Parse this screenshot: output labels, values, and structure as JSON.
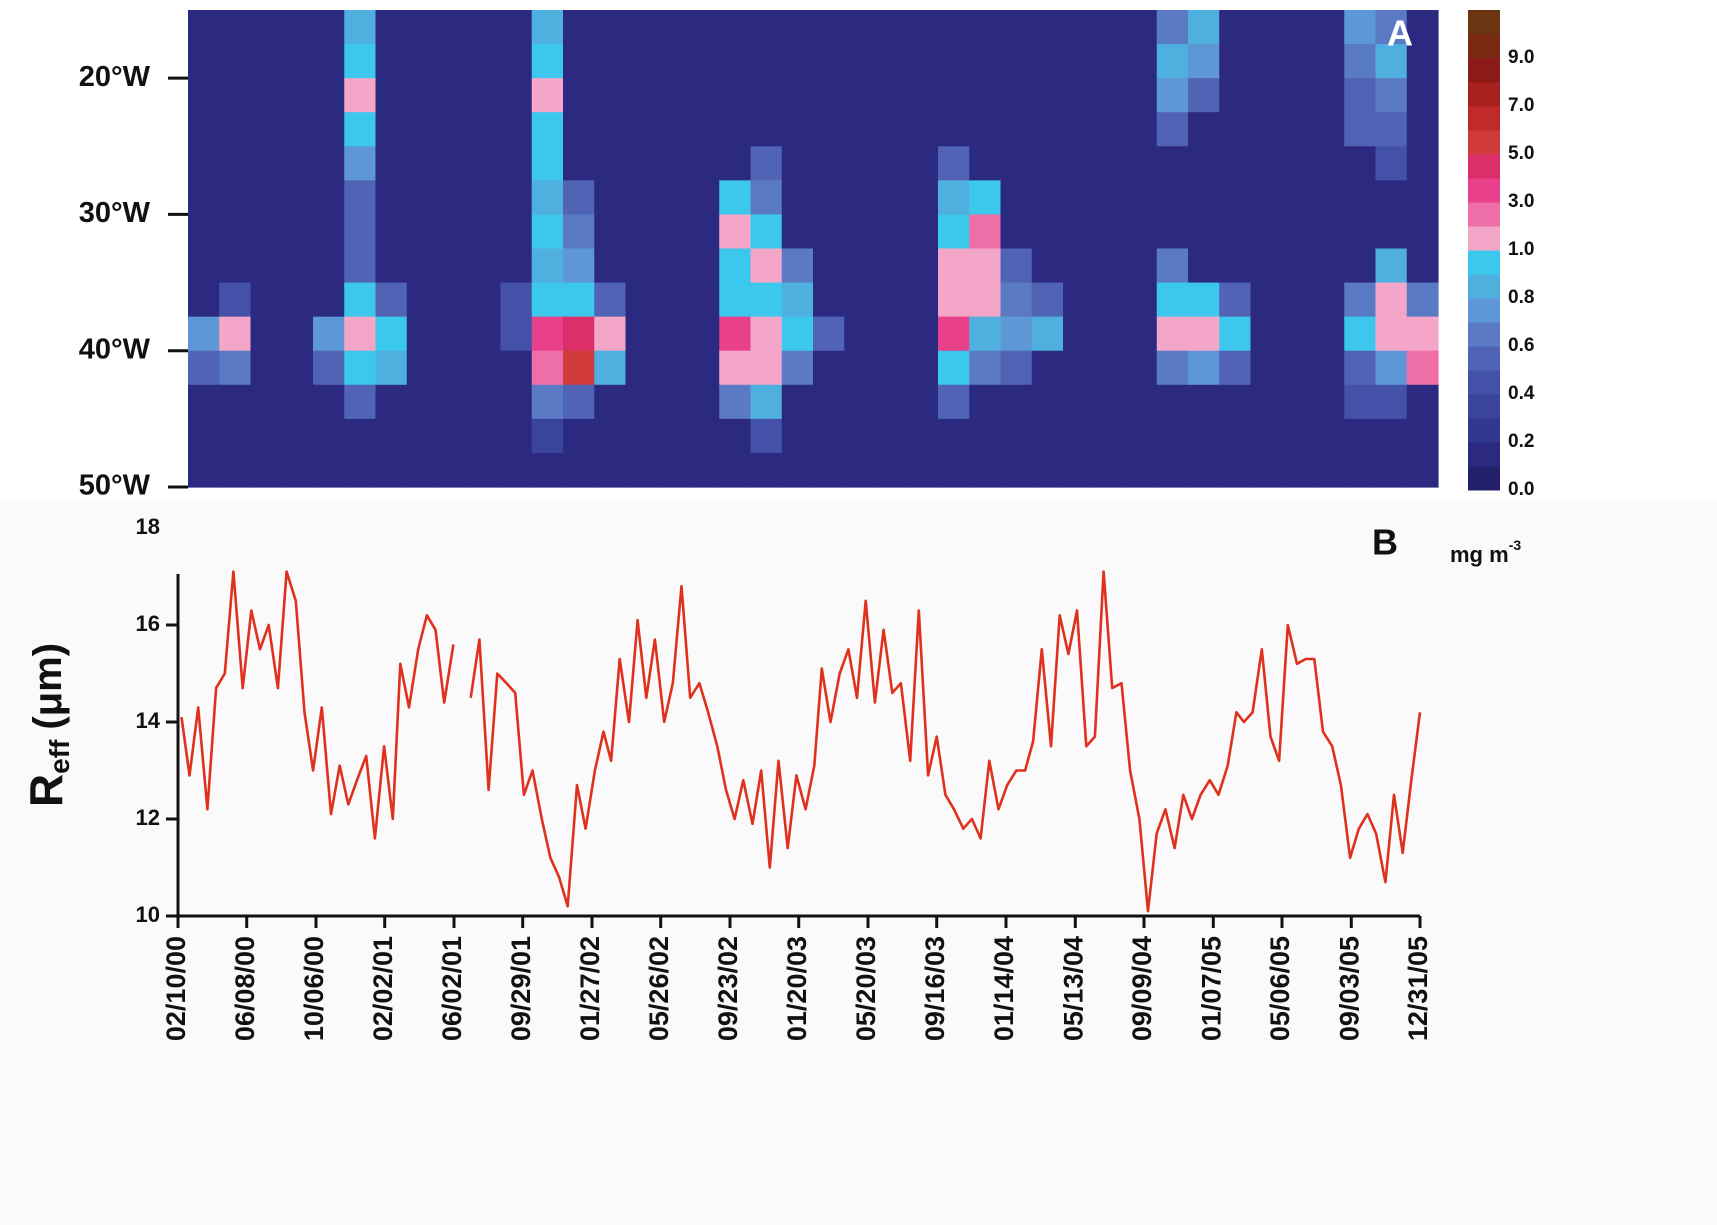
{
  "chart_data": [
    {
      "type": "heatmap",
      "label": "A",
      "ylim": [
        50,
        15
      ],
      "yticks": [
        {
          "value": 20,
          "label": "20°W"
        },
        {
          "value": 30,
          "label": "30°W"
        },
        {
          "value": 40,
          "label": "40°W"
        },
        {
          "value": 50,
          "label": "50°W"
        }
      ],
      "y": [
        16.25,
        18.75,
        21.25,
        23.75,
        26.25,
        28.75,
        31.25,
        33.75,
        36.25,
        38.75,
        41.25,
        43.75,
        46.25,
        48.75
      ],
      "z": [
        [
          0.1,
          0.1,
          0.1,
          0.1,
          0.1,
          0.8,
          0.1,
          0.1,
          0.1,
          0.1,
          0.1,
          0.8,
          0.1,
          0.1,
          0.1,
          0.1,
          0.1,
          0.1,
          0.1,
          0.1,
          0.1,
          0.1,
          0.1,
          0.1,
          0.1,
          0.1,
          0.1,
          0.1,
          0.1,
          0.1,
          0.1,
          0.6,
          0.8,
          0.1,
          0.1,
          0.1,
          0.1,
          0.7,
          0.6,
          0.1
        ],
        [
          0.1,
          0.1,
          0.1,
          0.1,
          0.1,
          0.9,
          0.1,
          0.1,
          0.1,
          0.1,
          0.1,
          0.9,
          0.1,
          0.1,
          0.1,
          0.1,
          0.1,
          0.1,
          0.1,
          0.1,
          0.1,
          0.1,
          0.1,
          0.1,
          0.1,
          0.1,
          0.1,
          0.1,
          0.1,
          0.1,
          0.1,
          0.8,
          0.7,
          0.1,
          0.1,
          0.1,
          0.1,
          0.6,
          0.8,
          0.1
        ],
        [
          0.1,
          0.1,
          0.1,
          0.1,
          0.1,
          1.2,
          0.1,
          0.1,
          0.1,
          0.1,
          0.1,
          1.5,
          0.1,
          0.1,
          0.1,
          0.1,
          0.1,
          0.1,
          0.1,
          0.1,
          0.1,
          0.1,
          0.1,
          0.1,
          0.1,
          0.1,
          0.1,
          0.1,
          0.1,
          0.1,
          0.1,
          0.7,
          0.5,
          0.1,
          0.1,
          0.1,
          0.1,
          0.5,
          0.6,
          0.1
        ],
        [
          0.1,
          0.1,
          0.1,
          0.1,
          0.1,
          0.9,
          0.1,
          0.1,
          0.1,
          0.1,
          0.1,
          0.9,
          0.1,
          0.1,
          0.1,
          0.1,
          0.1,
          0.1,
          0.1,
          0.1,
          0.1,
          0.1,
          0.1,
          0.1,
          0.1,
          0.1,
          0.1,
          0.1,
          0.1,
          0.1,
          0.1,
          0.5,
          0.1,
          0.1,
          0.1,
          0.1,
          0.1,
          0.5,
          0.5,
          0.1
        ],
        [
          0.1,
          0.1,
          0.1,
          0.1,
          0.1,
          0.7,
          0.1,
          0.1,
          0.1,
          0.1,
          0.1,
          0.9,
          0.1,
          0.1,
          0.1,
          0.1,
          0.1,
          0.1,
          0.5,
          0.1,
          0.1,
          0.1,
          0.1,
          0.1,
          0.5,
          0.1,
          0.1,
          0.1,
          0.1,
          0.1,
          0.1,
          0.1,
          0.1,
          0.1,
          0.1,
          0.1,
          0.1,
          0.1,
          0.4,
          0.1
        ],
        [
          0.1,
          0.1,
          0.1,
          0.1,
          0.1,
          0.5,
          0.1,
          0.1,
          0.1,
          0.1,
          0.1,
          0.8,
          0.5,
          0.1,
          0.1,
          0.1,
          0.1,
          0.9,
          0.6,
          0.1,
          0.1,
          0.1,
          0.1,
          0.1,
          0.8,
          0.9,
          0.1,
          0.1,
          0.1,
          0.1,
          0.1,
          0.1,
          0.1,
          0.1,
          0.1,
          0.1,
          0.1,
          0.1,
          0.1,
          0.1
        ],
        [
          0.1,
          0.1,
          0.1,
          0.1,
          0.1,
          0.5,
          0.1,
          0.1,
          0.1,
          0.1,
          0.1,
          0.9,
          0.6,
          0.1,
          0.1,
          0.1,
          0.1,
          1.2,
          0.9,
          0.1,
          0.1,
          0.1,
          0.1,
          0.1,
          0.9,
          2.5,
          0.1,
          0.1,
          0.1,
          0.1,
          0.1,
          0.1,
          0.1,
          0.1,
          0.1,
          0.1,
          0.1,
          0.1,
          0.1,
          0.1
        ],
        [
          0.1,
          0.1,
          0.1,
          0.1,
          0.1,
          0.5,
          0.1,
          0.1,
          0.1,
          0.1,
          0.1,
          0.8,
          0.7,
          0.1,
          0.1,
          0.1,
          0.1,
          0.9,
          1.2,
          0.6,
          0.1,
          0.1,
          0.1,
          0.1,
          1.5,
          1.8,
          0.5,
          0.1,
          0.1,
          0.1,
          0.1,
          0.6,
          0.1,
          0.1,
          0.1,
          0.1,
          0.1,
          0.1,
          0.8,
          0.1
        ],
        [
          0.1,
          0.4,
          0.1,
          0.1,
          0.1,
          0.9,
          0.5,
          0.1,
          0.1,
          0.1,
          0.4,
          0.9,
          0.9,
          0.5,
          0.1,
          0.1,
          0.1,
          0.9,
          0.9,
          0.8,
          0.1,
          0.1,
          0.1,
          0.1,
          1.5,
          1.2,
          0.6,
          0.5,
          0.1,
          0.1,
          0.1,
          0.9,
          0.9,
          0.5,
          0.1,
          0.1,
          0.1,
          0.6,
          1.2,
          0.6
        ],
        [
          0.7,
          1.5,
          0.1,
          0.1,
          0.7,
          1.5,
          0.9,
          0.1,
          0.1,
          0.1,
          0.4,
          3.5,
          4.5,
          1.2,
          0.1,
          0.1,
          0.1,
          3.0,
          1.5,
          0.9,
          0.5,
          0.1,
          0.1,
          0.1,
          3.0,
          0.8,
          0.7,
          0.8,
          0.1,
          0.1,
          0.1,
          1.5,
          1.8,
          0.9,
          0.1,
          0.1,
          0.1,
          0.9,
          1.5,
          1.1
        ],
        [
          0.5,
          0.6,
          0.1,
          0.1,
          0.5,
          0.9,
          0.8,
          0.1,
          0.1,
          0.1,
          0.1,
          2.5,
          5.5,
          0.8,
          0.1,
          0.1,
          0.1,
          1.0,
          1.2,
          0.6,
          0.1,
          0.1,
          0.1,
          0.1,
          0.9,
          0.6,
          0.5,
          0.1,
          0.1,
          0.1,
          0.1,
          0.6,
          0.7,
          0.5,
          0.1,
          0.1,
          0.1,
          0.5,
          0.7,
          2.5
        ],
        [
          0.1,
          0.1,
          0.1,
          0.1,
          0.1,
          0.5,
          0.1,
          0.1,
          0.1,
          0.1,
          0.1,
          0.6,
          0.5,
          0.1,
          0.1,
          0.1,
          0.1,
          0.6,
          0.8,
          0.1,
          0.1,
          0.1,
          0.1,
          0.1,
          0.5,
          0.1,
          0.1,
          0.1,
          0.1,
          0.1,
          0.1,
          0.1,
          0.1,
          0.1,
          0.1,
          0.1,
          0.1,
          0.4,
          0.4,
          0.1
        ],
        [
          0.1,
          0.1,
          0.1,
          0.1,
          0.1,
          0.1,
          0.1,
          0.1,
          0.1,
          0.1,
          0.1,
          0.3,
          0.1,
          0.1,
          0.1,
          0.1,
          0.1,
          0.1,
          0.4,
          0.1,
          0.1,
          0.1,
          0.1,
          0.1,
          0.1,
          0.1,
          0.1,
          0.1,
          0.1,
          0.1,
          0.1,
          0.1,
          0.1,
          0.1,
          0.1,
          0.1,
          0.1,
          0.1,
          0.1,
          0.1
        ],
        [
          0.1,
          0.1,
          0.1,
          0.1,
          0.1,
          0.1,
          0.1,
          0.1,
          0.1,
          0.1,
          0.1,
          0.1,
          0.1,
          0.1,
          0.1,
          0.1,
          0.1,
          0.1,
          0.1,
          0.1,
          0.1,
          0.1,
          0.1,
          0.1,
          0.1,
          0.1,
          0.1,
          0.1,
          0.1,
          0.1,
          0.1,
          0.1,
          0.1,
          0.1,
          0.1,
          0.1,
          0.1,
          0.1,
          0.1,
          0.1
        ]
      ],
      "colorbar": {
        "levels": [
          0,
          0.1,
          0.2,
          0.3,
          0.4,
          0.5,
          0.6,
          0.7,
          0.8,
          0.9,
          1,
          2,
          3,
          4,
          5,
          6,
          7,
          8,
          9,
          10,
          11
        ],
        "colors": [
          "#23206b",
          "#2b2a80",
          "#33388f",
          "#3a449a",
          "#4352a8",
          "#5063b5",
          "#5b7ac4",
          "#5d97d6",
          "#4fb0e0",
          "#3cc8ec",
          "#f4a6c8",
          "#ee6fa7",
          "#e8408a",
          "#dc2f6a",
          "#d03a3a",
          "#c02a2a",
          "#a8201f",
          "#8c1a16",
          "#7a2a12",
          "#6b3512"
        ],
        "ticks": [
          {
            "value": 0,
            "label": "0.0"
          },
          {
            "value": 0.2,
            "label": "0.2"
          },
          {
            "value": 0.4,
            "label": "0.4"
          },
          {
            "value": 0.6,
            "label": "0.6"
          },
          {
            "value": 0.8,
            "label": "0.8"
          },
          {
            "value": 1,
            "label": "1.0"
          },
          {
            "value": 3,
            "label": "3.0"
          },
          {
            "value": 5,
            "label": "5.0"
          },
          {
            "value": 7,
            "label": "7.0"
          },
          {
            "value": 9,
            "label": "9.0"
          }
        ],
        "label": "mg m",
        "label_sup": "-3"
      }
    },
    {
      "type": "line",
      "label": "B",
      "color": "#e0301e",
      "ylabel": {
        "main": "R",
        "sub": "eff",
        "unit": "(μm)"
      },
      "ylim": [
        10,
        18
      ],
      "yticks": [
        10,
        12,
        14,
        16,
        18
      ],
      "xlim": [
        "2000-02-10",
        "2005-12-31"
      ],
      "xticks": [
        {
          "value": "2000-02-10",
          "label": "02/10/00"
        },
        {
          "value": "2000-06-08",
          "label": "06/08/00"
        },
        {
          "value": "2000-10-06",
          "label": "10/06/00"
        },
        {
          "value": "2001-02-02",
          "label": "02/02/01"
        },
        {
          "value": "2001-06-02",
          "label": "06/02/01"
        },
        {
          "value": "2001-09-29",
          "label": "09/29/01"
        },
        {
          "value": "2002-01-27",
          "label": "01/27/02"
        },
        {
          "value": "2002-05-26",
          "label": "05/26/02"
        },
        {
          "value": "2002-09-23",
          "label": "09/23/02"
        },
        {
          "value": "2003-01-20",
          "label": "01/20/03"
        },
        {
          "value": "2003-05-20",
          "label": "05/20/03"
        },
        {
          "value": "2003-09-16",
          "label": "09/16/03"
        },
        {
          "value": "2004-01-14",
          "label": "01/14/04"
        },
        {
          "value": "2004-05-13",
          "label": "05/13/04"
        },
        {
          "value": "2004-09-09",
          "label": "09/09/04"
        },
        {
          "value": "2005-01-07",
          "label": "01/07/05"
        },
        {
          "value": "2005-05-06",
          "label": "05/06/05"
        },
        {
          "value": "2005-09-03",
          "label": "09/03/05"
        },
        {
          "value": "2005-12-31",
          "label": "12/31/05"
        }
      ],
      "x": [
        "2000-02-16",
        "2000-03-01",
        "2000-03-16",
        "2000-04-01",
        "2000-04-16",
        "2000-05-01",
        "2000-05-16",
        "2000-06-01",
        "2000-06-16",
        "2000-07-01",
        "2000-07-16",
        "2000-08-01",
        "2000-08-16",
        "2000-09-01",
        "2000-09-16",
        "2000-10-01",
        "2000-10-16",
        "2000-11-01",
        "2000-11-16",
        "2000-12-01",
        "2000-12-16",
        "2001-01-01",
        "2001-01-16",
        "2001-02-01",
        "2001-02-16",
        "2001-03-01",
        "2001-03-16",
        "2001-04-01",
        "2001-04-16",
        "2001-05-01",
        "2001-05-16",
        "2001-06-01",
        "2001-06-16",
        "2001-07-01",
        "2001-07-16",
        "2001-08-01",
        "2001-08-16",
        "2001-09-01",
        "2001-09-16",
        "2001-10-01",
        "2001-10-16",
        "2001-11-01",
        "2001-11-16",
        "2001-12-01",
        "2001-12-16",
        "2002-01-01",
        "2002-01-16",
        "2002-02-01",
        "2002-02-16",
        "2002-03-01",
        "2002-03-16",
        "2002-04-01",
        "2002-04-16",
        "2002-05-01",
        "2002-05-16",
        "2002-06-01",
        "2002-06-16",
        "2002-07-01",
        "2002-07-16",
        "2002-08-01",
        "2002-08-16",
        "2002-09-01",
        "2002-09-16",
        "2002-10-01",
        "2002-10-16",
        "2002-11-01",
        "2002-11-16",
        "2002-12-01",
        "2002-12-16",
        "2003-01-01",
        "2003-01-16",
        "2003-02-01",
        "2003-02-16",
        "2003-03-01",
        "2003-03-16",
        "2003-04-01",
        "2003-04-16",
        "2003-05-01",
        "2003-05-16",
        "2003-06-01",
        "2003-06-16",
        "2003-07-01",
        "2003-07-16",
        "2003-08-01",
        "2003-08-16",
        "2003-09-01",
        "2003-09-16",
        "2003-10-01",
        "2003-10-16",
        "2003-11-01",
        "2003-11-16",
        "2003-12-01",
        "2003-12-16",
        "2004-01-01",
        "2004-01-16",
        "2004-02-01",
        "2004-02-16",
        "2004-03-01",
        "2004-03-16",
        "2004-04-01",
        "2004-04-16",
        "2004-05-01",
        "2004-05-16",
        "2004-06-01",
        "2004-06-16",
        "2004-07-01",
        "2004-07-16",
        "2004-08-01",
        "2004-08-16",
        "2004-09-01",
        "2004-09-16",
        "2004-10-01",
        "2004-10-16",
        "2004-11-01",
        "2004-11-16",
        "2004-12-01",
        "2004-12-16",
        "2005-01-01",
        "2005-01-16",
        "2005-02-01",
        "2005-02-16",
        "2005-03-01",
        "2005-03-16",
        "2005-04-01",
        "2005-04-16",
        "2005-05-01",
        "2005-05-16",
        "2005-06-01",
        "2005-06-16",
        "2005-07-01",
        "2005-07-16",
        "2005-08-01",
        "2005-08-16",
        "2005-09-01",
        "2005-09-16",
        "2005-10-01",
        "2005-10-16",
        "2005-11-01",
        "2005-11-16",
        "2005-12-01",
        "2005-12-16",
        "2005-12-31"
      ],
      "values": [
        14.1,
        12.9,
        14.3,
        12.2,
        14.7,
        15.0,
        17.1,
        14.7,
        16.3,
        15.5,
        16.0,
        14.7,
        17.1,
        16.5,
        14.2,
        13.0,
        14.3,
        12.1,
        13.1,
        12.3,
        12.8,
        13.3,
        11.6,
        13.5,
        12.0,
        15.2,
        14.3,
        15.5,
        16.2,
        15.9,
        14.4,
        15.6,
        null,
        14.5,
        15.7,
        12.6,
        15.0,
        14.8,
        14.6,
        12.5,
        13.0,
        12.0,
        11.2,
        10.8,
        10.2,
        12.7,
        11.8,
        13.0,
        13.8,
        13.2,
        15.3,
        14.0,
        16.1,
        14.5,
        15.7,
        14.0,
        14.8,
        16.8,
        14.5,
        14.8,
        14.2,
        13.5,
        12.6,
        12.0,
        12.8,
        11.9,
        13.0,
        11.0,
        13.2,
        11.4,
        12.9,
        12.2,
        13.1,
        15.1,
        14.0,
        15.0,
        15.5,
        14.5,
        16.5,
        14.4,
        15.9,
        14.6,
        14.8,
        13.2,
        16.3,
        12.9,
        13.7,
        12.5,
        12.2,
        11.8,
        12.0,
        11.6,
        13.2,
        12.2,
        12.7,
        13.0,
        13.0,
        13.6,
        15.5,
        13.5,
        16.2,
        15.4,
        16.3,
        13.5,
        13.7,
        17.1,
        14.7,
        14.8,
        13.0,
        12.0,
        10.1,
        11.7,
        12.2,
        11.4,
        12.5,
        12.0,
        12.5,
        12.8,
        12.5,
        13.1,
        14.2,
        14.0,
        14.2,
        15.5,
        13.7,
        13.2,
        16.0,
        15.2,
        15.3,
        15.3,
        13.8,
        13.5,
        12.7,
        11.2,
        11.8,
        12.1,
        11.7,
        10.7,
        12.5,
        11.3,
        12.8,
        14.2
      ]
    }
  ]
}
